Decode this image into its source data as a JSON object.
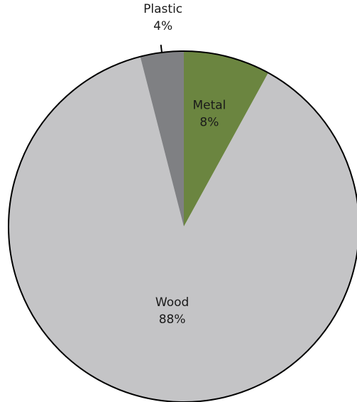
{
  "chart_data": {
    "type": "pie",
    "title": "",
    "start_angle_deg": 0,
    "direction": "clockwise",
    "slices": [
      {
        "label": "Metal",
        "value": 8,
        "value_label": "8%",
        "color": "#6b8540",
        "label_position": "inside"
      },
      {
        "label": "Wood",
        "value": 88,
        "value_label": "88%",
        "color": "#c4c4c6",
        "label_position": "inside"
      },
      {
        "label": "Plastic",
        "value": 4,
        "value_label": "4%",
        "color": "#7f8083",
        "label_position": "outside"
      }
    ],
    "legend": "none"
  }
}
